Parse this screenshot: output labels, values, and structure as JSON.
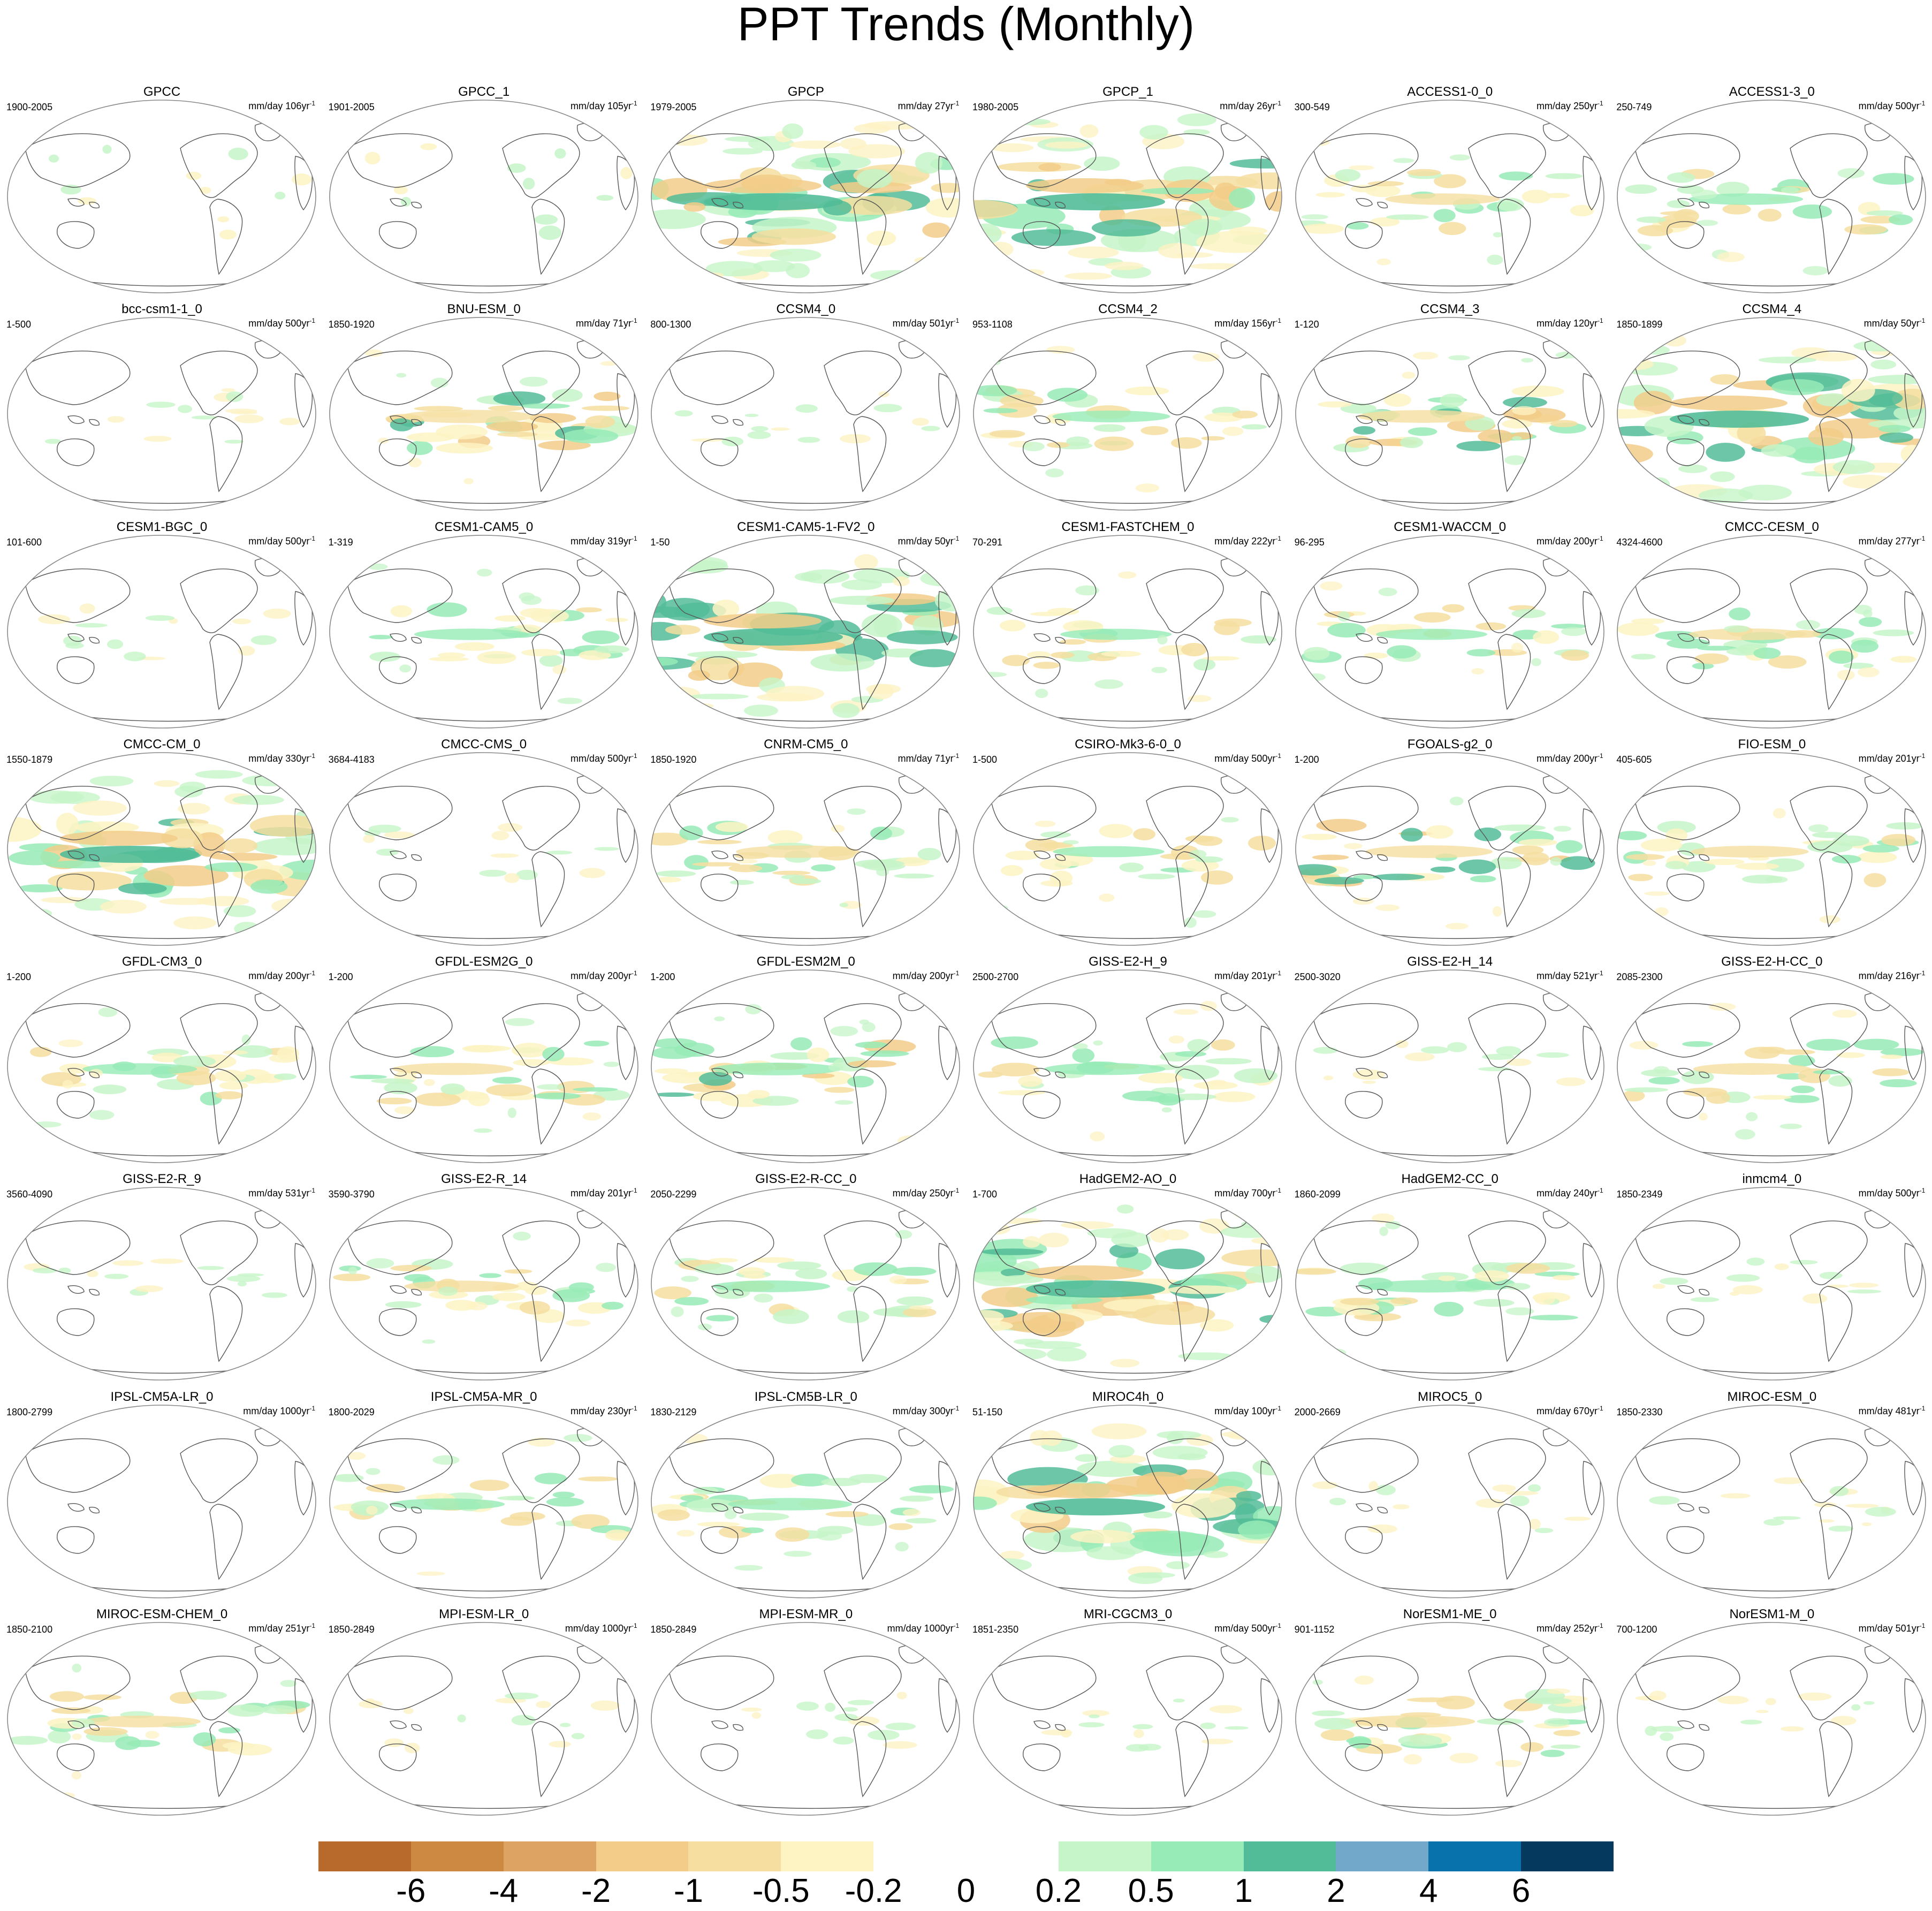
{
  "title": "PPT Trends (Monthly)",
  "units": "mm/day",
  "unit_exponent": "-1",
  "panels": [
    {
      "name": "GPCC",
      "years": "1900-2005",
      "per": "106yr",
      "pattern": "land",
      "intensity": 0.35
    },
    {
      "name": "GPCC_1",
      "years": "1901-2005",
      "per": "105yr",
      "pattern": "land",
      "intensity": 0.35
    },
    {
      "name": "GPCP",
      "years": "1979-2005",
      "per": "27yr",
      "pattern": "strong",
      "intensity": 1.0
    },
    {
      "name": "GPCP_1",
      "years": "1980-2005",
      "per": "26yr",
      "pattern": "strong",
      "intensity": 1.0
    },
    {
      "name": "ACCESS1-0_0",
      "years": "300-549",
      "per": "250yr",
      "pattern": "tropical",
      "intensity": 0.45
    },
    {
      "name": "ACCESS1-3_0",
      "years": "250-749",
      "per": "500yr",
      "pattern": "tropical",
      "intensity": 0.45
    },
    {
      "name": "bcc-csm1-1_0",
      "years": "1-500",
      "per": "500yr",
      "pattern": "weak",
      "intensity": 0.25
    },
    {
      "name": "BNU-ESM_0",
      "years": "1850-1920",
      "per": "71yr",
      "pattern": "tropical",
      "intensity": 0.75
    },
    {
      "name": "CCSM4_0",
      "years": "800-1300",
      "per": "501yr",
      "pattern": "weak",
      "intensity": 0.3
    },
    {
      "name": "CCSM4_2",
      "years": "953-1108",
      "per": "156yr",
      "pattern": "tropical",
      "intensity": 0.5
    },
    {
      "name": "CCSM4_3",
      "years": "1-120",
      "per": "120yr",
      "pattern": "tropical",
      "intensity": 0.65
    },
    {
      "name": "CCSM4_4",
      "years": "1850-1899",
      "per": "50yr",
      "pattern": "strong",
      "intensity": 0.9
    },
    {
      "name": "CESM1-BGC_0",
      "years": "101-600",
      "per": "500yr",
      "pattern": "weak",
      "intensity": 0.3
    },
    {
      "name": "CESM1-CAM5_0",
      "years": "1-319",
      "per": "319yr",
      "pattern": "tropical",
      "intensity": 0.45
    },
    {
      "name": "CESM1-CAM5-1-FV2_0",
      "years": "1-50",
      "per": "50yr",
      "pattern": "strong",
      "intensity": 0.95
    },
    {
      "name": "CESM1-FASTCHEM_0",
      "years": "70-291",
      "per": "222yr",
      "pattern": "tropical",
      "intensity": 0.4
    },
    {
      "name": "CESM1-WACCM_0",
      "years": "96-295",
      "per": "200yr",
      "pattern": "tropical",
      "intensity": 0.4
    },
    {
      "name": "CMCC-CESM_0",
      "years": "4324-4600",
      "per": "277yr",
      "pattern": "tropical",
      "intensity": 0.5
    },
    {
      "name": "CMCC-CM_0",
      "years": "1550-1879",
      "per": "330yr",
      "pattern": "strong",
      "intensity": 0.9
    },
    {
      "name": "CMCC-CMS_0",
      "years": "3684-4183",
      "per": "500yr",
      "pattern": "weak",
      "intensity": 0.25
    },
    {
      "name": "CNRM-CM5_0",
      "years": "1850-1920",
      "per": "71yr",
      "pattern": "tropical",
      "intensity": 0.6
    },
    {
      "name": "CSIRO-Mk3-6-0_0",
      "years": "1-500",
      "per": "500yr",
      "pattern": "tropical",
      "intensity": 0.4
    },
    {
      "name": "FGOALS-g2_0",
      "years": "1-200",
      "per": "200yr",
      "pattern": "tropical",
      "intensity": 0.65
    },
    {
      "name": "FIO-ESM_0",
      "years": "405-605",
      "per": "201yr",
      "pattern": "tropical",
      "intensity": 0.5
    },
    {
      "name": "GFDL-CM3_0",
      "years": "1-200",
      "per": "200yr",
      "pattern": "tropical",
      "intensity": 0.45
    },
    {
      "name": "GFDL-ESM2G_0",
      "years": "1-200",
      "per": "200yr",
      "pattern": "tropical",
      "intensity": 0.55
    },
    {
      "name": "GFDL-ESM2M_0",
      "years": "1-200",
      "per": "200yr",
      "pattern": "tropical",
      "intensity": 0.65
    },
    {
      "name": "GISS-E2-H_9",
      "years": "2500-2700",
      "per": "201yr",
      "pattern": "tropical",
      "intensity": 0.55
    },
    {
      "name": "GISS-E2-H_14",
      "years": "2500-3020",
      "per": "521yr",
      "pattern": "weak",
      "intensity": 0.3
    },
    {
      "name": "GISS-E2-H-CC_0",
      "years": "2085-2300",
      "per": "216yr",
      "pattern": "tropical",
      "intensity": 0.5
    },
    {
      "name": "GISS-E2-R_9",
      "years": "3560-4090",
      "per": "531yr",
      "pattern": "weak",
      "intensity": 0.3
    },
    {
      "name": "GISS-E2-R_14",
      "years": "3590-3790",
      "per": "201yr",
      "pattern": "tropical",
      "intensity": 0.45
    },
    {
      "name": "GISS-E2-R-CC_0",
      "years": "2050-2299",
      "per": "250yr",
      "pattern": "tropical",
      "intensity": 0.5
    },
    {
      "name": "HadGEM2-AO_0",
      "years": "1-700",
      "per": "700yr",
      "pattern": "strong",
      "intensity": 0.8
    },
    {
      "name": "HadGEM2-CC_0",
      "years": "1860-2099",
      "per": "240yr",
      "pattern": "tropical",
      "intensity": 0.6
    },
    {
      "name": "inmcm4_0",
      "years": "1850-2349",
      "per": "500yr",
      "pattern": "weak",
      "intensity": 0.3
    },
    {
      "name": "IPSL-CM5A-LR_0",
      "years": "1800-2799",
      "per": "1000yr",
      "pattern": "none",
      "intensity": 0.05
    },
    {
      "name": "IPSL-CM5A-MR_0",
      "years": "1800-2029",
      "per": "230yr",
      "pattern": "tropical",
      "intensity": 0.45
    },
    {
      "name": "IPSL-CM5B-LR_0",
      "years": "1830-2129",
      "per": "300yr",
      "pattern": "tropical",
      "intensity": 0.6
    },
    {
      "name": "MIROC4h_0",
      "years": "51-150",
      "per": "100yr",
      "pattern": "strong",
      "intensity": 0.8
    },
    {
      "name": "MIROC5_0",
      "years": "2000-2669",
      "per": "670yr",
      "pattern": "weak",
      "intensity": 0.35
    },
    {
      "name": "MIROC-ESM_0",
      "years": "1850-2330",
      "per": "481yr",
      "pattern": "weak",
      "intensity": 0.35
    },
    {
      "name": "MIROC-ESM-CHEM_0",
      "years": "1850-2100",
      "per": "251yr",
      "pattern": "tropical",
      "intensity": 0.5
    },
    {
      "name": "MPI-ESM-LR_0",
      "years": "1850-2849",
      "per": "1000yr",
      "pattern": "weak",
      "intensity": 0.25
    },
    {
      "name": "MPI-ESM-MR_0",
      "years": "1850-2849",
      "per": "1000yr",
      "pattern": "weak",
      "intensity": 0.3
    },
    {
      "name": "MRI-CGCM3_0",
      "years": "1851-2350",
      "per": "500yr",
      "pattern": "weak",
      "intensity": 0.25
    },
    {
      "name": "NorESM1-ME_0",
      "years": "901-1152",
      "per": "252yr",
      "pattern": "tropical",
      "intensity": 0.6
    },
    {
      "name": "NorESM1-M_0",
      "years": "700-1200",
      "per": "501yr",
      "pattern": "weak",
      "intensity": 0.2
    }
  ],
  "colorbar": {
    "colors": [
      "#b86a2c",
      "#cd8842",
      "#dca362",
      "#f2cc88",
      "#f5dea0",
      "#fdf3c3",
      "#ffffff",
      "#ffffff",
      "#c5f5c8",
      "#96ebb6",
      "#52bc98",
      "#72a8c9",
      "#0872ac",
      "#053a5e"
    ],
    "labels": [
      "-6",
      "-4",
      "-2",
      "-1",
      "-0.5",
      "-0.2",
      "0",
      "0.2",
      "0.5",
      "1",
      "2",
      "4",
      "6"
    ]
  },
  "colors": {
    "coast": "#555555",
    "border": "#888888"
  }
}
